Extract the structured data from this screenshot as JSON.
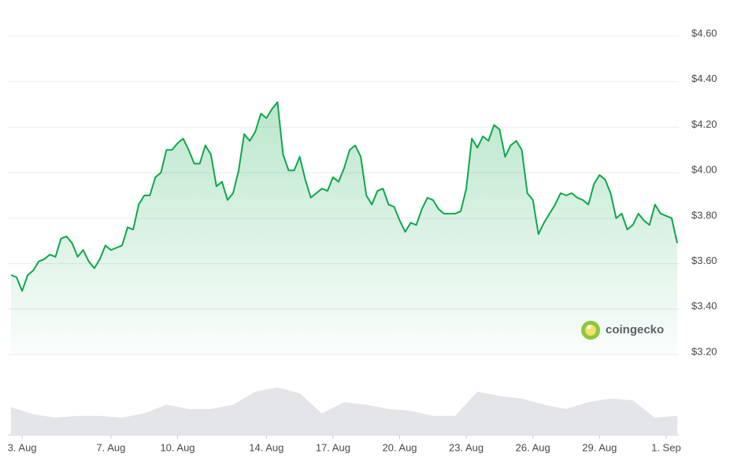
{
  "chart_data": {
    "type": "area",
    "color": "#0ca84a",
    "watermark": "coingecko",
    "xlim": [
      2.5,
      32.5
    ],
    "xticks": [
      {
        "value": 3,
        "label": "3. Aug"
      },
      {
        "value": 7,
        "label": "7. Aug"
      },
      {
        "value": 10,
        "label": "10. Aug"
      },
      {
        "value": 14,
        "label": "14. Aug"
      },
      {
        "value": 17,
        "label": "17. Aug"
      },
      {
        "value": 20,
        "label": "20. Aug"
      },
      {
        "value": 23,
        "label": "23. Aug"
      },
      {
        "value": 26,
        "label": "26. Aug"
      },
      {
        "value": 29,
        "label": "29. Aug"
      },
      {
        "value": 32,
        "label": "1. Sep"
      }
    ],
    "ylim": [
      3.2,
      4.6
    ],
    "yticks": [
      {
        "value": 3.2,
        "label": "$3.20"
      },
      {
        "value": 3.4,
        "label": "$3.40"
      },
      {
        "value": 3.6,
        "label": "$3.60"
      },
      {
        "value": 3.8,
        "label": "$3.80"
      },
      {
        "value": 4.0,
        "label": "$4.00"
      },
      {
        "value": 4.2,
        "label": "$4.20"
      },
      {
        "value": 4.4,
        "label": "$4.40"
      },
      {
        "value": 4.6,
        "label": "$4.60"
      }
    ],
    "grid": true,
    "x": [
      2.5,
      2.75,
      3,
      3.25,
      3.5,
      3.75,
      4,
      4.25,
      4.5,
      4.75,
      5,
      5.25,
      5.5,
      5.75,
      6,
      6.25,
      6.5,
      6.75,
      7,
      7.25,
      7.5,
      7.75,
      8,
      8.25,
      8.5,
      8.75,
      9,
      9.25,
      9.5,
      9.75,
      10,
      10.25,
      10.5,
      10.75,
      11,
      11.25,
      11.5,
      11.75,
      12,
      12.25,
      12.5,
      12.75,
      13,
      13.25,
      13.5,
      13.75,
      14,
      14.25,
      14.5,
      14.75,
      15,
      15.25,
      15.5,
      15.75,
      16,
      16.25,
      16.5,
      16.75,
      17,
      17.25,
      17.5,
      17.75,
      18,
      18.25,
      18.5,
      18.75,
      19,
      19.25,
      19.5,
      19.75,
      20,
      20.25,
      20.5,
      20.75,
      21,
      21.25,
      21.5,
      21.75,
      22,
      22.25,
      22.5,
      22.75,
      23,
      23.25,
      23.5,
      23.75,
      24,
      24.25,
      24.5,
      24.75,
      25,
      25.25,
      25.5,
      25.75,
      26,
      26.25,
      26.5,
      26.75,
      27,
      27.25,
      27.5,
      27.75,
      28,
      28.25,
      28.5,
      28.75,
      29,
      29.25,
      29.5,
      29.75,
      30,
      30.25,
      30.5,
      30.75,
      31,
      31.25,
      31.5,
      31.75,
      32,
      32.25,
      32.5
    ],
    "values": [
      3.55,
      3.54,
      3.48,
      3.55,
      3.57,
      3.61,
      3.62,
      3.64,
      3.63,
      3.71,
      3.72,
      3.69,
      3.63,
      3.66,
      3.61,
      3.58,
      3.62,
      3.68,
      3.66,
      3.67,
      3.68,
      3.76,
      3.75,
      3.86,
      3.9,
      3.9,
      3.98,
      4.0,
      4.1,
      4.1,
      4.13,
      4.15,
      4.1,
      4.04,
      4.04,
      4.12,
      4.08,
      3.94,
      3.96,
      3.88,
      3.91,
      4.01,
      4.17,
      4.14,
      4.18,
      4.26,
      4.24,
      4.28,
      4.31,
      4.08,
      4.01,
      4.01,
      4.07,
      3.97,
      3.89,
      3.91,
      3.93,
      3.92,
      3.98,
      3.96,
      4.02,
      4.1,
      4.12,
      4.07,
      3.9,
      3.86,
      3.92,
      3.93,
      3.86,
      3.85,
      3.79,
      3.74,
      3.78,
      3.77,
      3.84,
      3.89,
      3.88,
      3.84,
      3.82,
      3.82,
      3.82,
      3.83,
      3.93,
      4.15,
      4.11,
      4.16,
      4.14,
      4.21,
      4.19,
      4.07,
      4.12,
      4.14,
      4.1,
      3.91,
      3.88,
      3.73,
      3.78,
      3.82,
      3.86,
      3.91,
      3.9,
      3.91,
      3.89,
      3.88,
      3.86,
      3.95,
      3.99,
      3.97,
      3.91,
      3.8,
      3.82,
      3.75,
      3.77,
      3.82,
      3.79,
      3.77,
      3.86,
      3.82,
      3.81,
      3.8,
      3.69
    ],
    "volume": {
      "color": "#e3e5e8",
      "ylim": [
        0,
        100
      ],
      "x": [
        2.5,
        3.5,
        4.5,
        5.5,
        6.5,
        7.5,
        8.5,
        9.5,
        10.5,
        11.5,
        12.5,
        13.5,
        14.5,
        15.5,
        16.5,
        17.5,
        18.5,
        19.5,
        20.5,
        21.5,
        22.5,
        23.5,
        24.5,
        25.5,
        26.5,
        27.5,
        28.5,
        29.5,
        30.5,
        31.5,
        32.5
      ],
      "values": [
        32,
        24,
        20,
        22,
        22,
        20,
        25,
        35,
        30,
        30,
        35,
        50,
        55,
        48,
        25,
        38,
        35,
        30,
        28,
        22,
        22,
        50,
        45,
        42,
        35,
        30,
        38,
        42,
        40,
        20,
        22
      ]
    }
  }
}
